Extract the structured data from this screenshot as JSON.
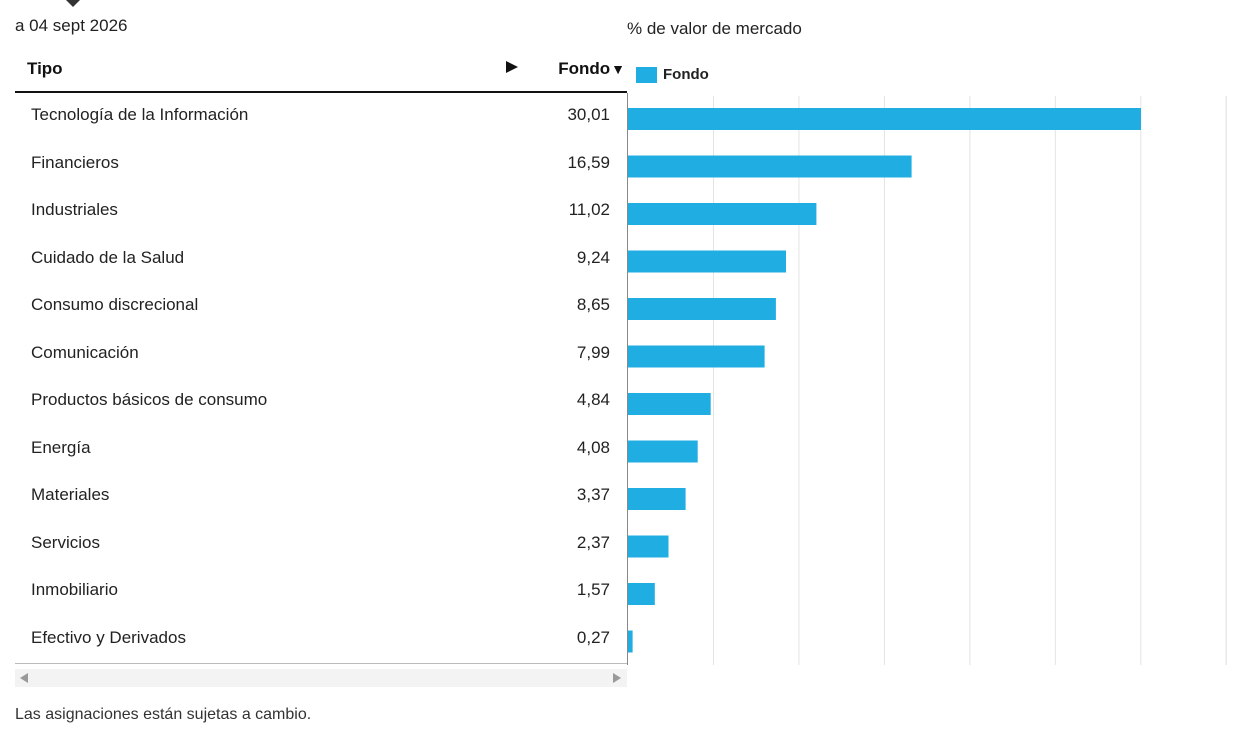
{
  "as_of": "a 04 sept 2026",
  "table": {
    "col_tipo": "Tipo",
    "col_fondo": "Fondo",
    "sort_glyph": "▼",
    "rows": [
      {
        "name": "Tecnología de la Información",
        "value": "30,01"
      },
      {
        "name": "Financieros",
        "value": "16,59"
      },
      {
        "name": "Industriales",
        "value": "11,02"
      },
      {
        "name": "Cuidado de la Salud",
        "value": "9,24"
      },
      {
        "name": "Consumo discrecional",
        "value": "8,65"
      },
      {
        "name": "Comunicación",
        "value": "7,99"
      },
      {
        "name": "Productos básicos de consumo",
        "value": "4,84"
      },
      {
        "name": "Energía",
        "value": "4,08"
      },
      {
        "name": "Materiales",
        "value": "3,37"
      },
      {
        "name": "Servicios",
        "value": "2,37"
      },
      {
        "name": "Inmobiliario",
        "value": "1,57"
      },
      {
        "name": "Efectivo y Derivados",
        "value": "0,27"
      }
    ]
  },
  "footnote": "Las asignaciones están sujetas a cambio.",
  "chart_data": {
    "type": "bar",
    "orientation": "horizontal",
    "title": "% de valor de mercado",
    "categories": [
      "Tecnología de la Información",
      "Financieros",
      "Industriales",
      "Cuidado de la Salud",
      "Consumo discrecional",
      "Comunicación",
      "Productos básicos de consumo",
      "Energía",
      "Materiales",
      "Servicios",
      "Inmobiliario",
      "Efectivo y Derivados"
    ],
    "series": [
      {
        "name": "Fondo",
        "color": "#20ade1",
        "values": [
          30.01,
          16.59,
          11.02,
          9.24,
          8.65,
          7.99,
          4.84,
          4.08,
          3.37,
          2.37,
          1.57,
          0.27
        ]
      }
    ],
    "xlim": [
      0,
      35
    ],
    "grid": true,
    "legend": "top-left"
  }
}
